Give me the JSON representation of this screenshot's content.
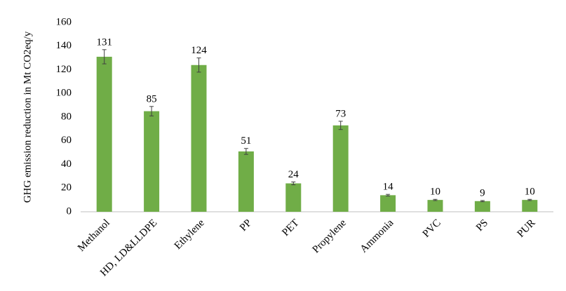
{
  "chart_data": {
    "type": "bar",
    "y_label": "GHG emission reduction in Mt CO2eq/y",
    "categories": [
      "Methanol",
      "HD, LD&LLDPE",
      "Ethylene",
      "PP",
      "PET",
      "Propylene",
      "Ammonia",
      "PVC",
      "PS",
      "PUR"
    ],
    "values": [
      131,
      85,
      124,
      51,
      24,
      73,
      14,
      10,
      9,
      10
    ],
    "errors": [
      6,
      4,
      6,
      2.5,
      1.2,
      3.5,
      0.7,
      0.5,
      0.5,
      0.5
    ],
    "color": "#70ad47",
    "ylim": [
      0,
      160
    ],
    "yticks": [
      0,
      20,
      40,
      60,
      80,
      100,
      120,
      140,
      160
    ],
    "grid": false
  }
}
